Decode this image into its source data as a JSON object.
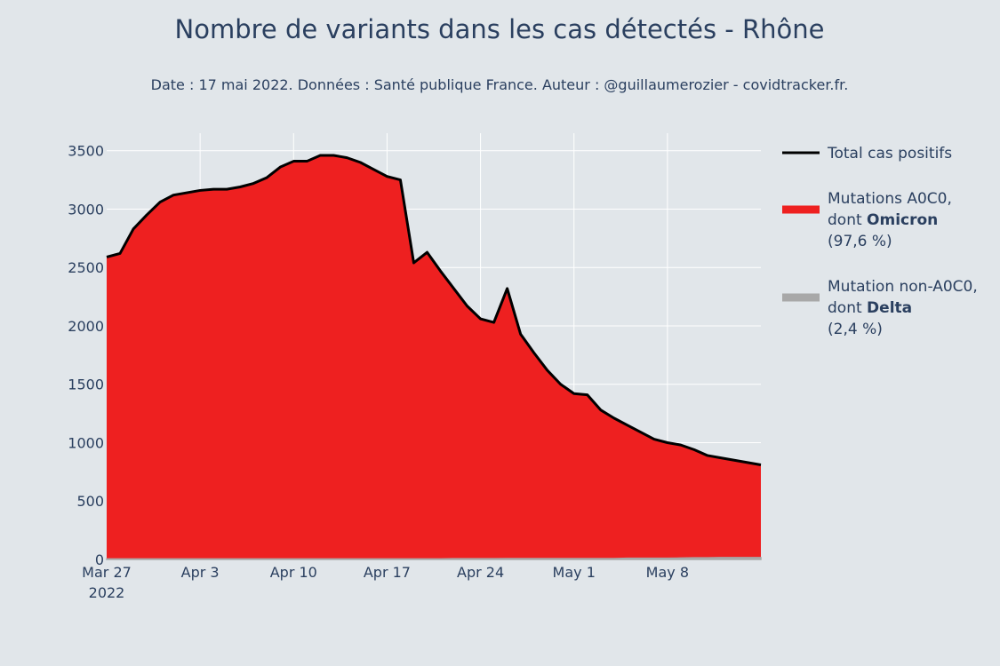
{
  "chart_data": {
    "type": "area",
    "title": "Nombre de variants dans les cas détectés - Rhône",
    "subtitle": "Date : 17 mai 2022. Données : Santé publique France. Auteur : @guillaumerozier - covidtracker.fr.",
    "xlabel": "",
    "ylabel": "",
    "ylim": [
      0,
      3650
    ],
    "y_ticks": [
      0,
      500,
      1000,
      1500,
      2000,
      2500,
      3000,
      3500
    ],
    "x_ticks": [
      {
        "day": 0,
        "label": "Mar 27",
        "sub": "2022"
      },
      {
        "day": 7,
        "label": "Apr 3",
        "sub": ""
      },
      {
        "day": 14,
        "label": "Apr 10",
        "sub": ""
      },
      {
        "day": 21,
        "label": "Apr 17",
        "sub": ""
      },
      {
        "day": 28,
        "label": "Apr 24",
        "sub": ""
      },
      {
        "day": 35,
        "label": "May 1",
        "sub": ""
      },
      {
        "day": 42,
        "label": "May 8",
        "sub": ""
      }
    ],
    "x_range_days": [
      0,
      49
    ],
    "grid": true,
    "legend_position": "right",
    "series": [
      {
        "name": "Total cas positifs",
        "color": "#000000",
        "style": "line",
        "values": [
          2590,
          2620,
          2830,
          2950,
          3060,
          3120,
          3140,
          3160,
          3170,
          3170,
          3190,
          3220,
          3270,
          3360,
          3410,
          3410,
          3460,
          3460,
          3440,
          3400,
          3340,
          3280,
          3250,
          2540,
          2630,
          2470,
          2320,
          2170,
          2060,
          2030,
          2320,
          1930,
          1770,
          1620,
          1500,
          1420,
          1410,
          1280,
          1210,
          1150,
          1090,
          1030,
          1000,
          980,
          940,
          890,
          870,
          850,
          830,
          810
        ]
      },
      {
        "name": "Mutations A0C0, dont Omicron (97,6 %)",
        "color": "#ee2020",
        "style": "area",
        "values": [
          2585,
          2615,
          2825,
          2945,
          3055,
          3115,
          3135,
          3155,
          3165,
          3165,
          3185,
          3215,
          3265,
          3355,
          3405,
          3405,
          3455,
          3455,
          3435,
          3395,
          3335,
          3275,
          3245,
          2535,
          2625,
          2465,
          2313,
          2163,
          2053,
          2023,
          2312,
          1922,
          1762,
          1612,
          1492,
          1412,
          1402,
          1272,
          1202,
          1140,
          1080,
          1020,
          990,
          968,
          926,
          876,
          854,
          834,
          814,
          794
        ]
      },
      {
        "name": "Mutation non-A0C0, dont Delta (2,4 %)",
        "color": "#a8a8a8",
        "style": "area",
        "values": [
          5,
          5,
          5,
          5,
          5,
          5,
          5,
          5,
          5,
          5,
          5,
          5,
          5,
          5,
          5,
          5,
          5,
          5,
          5,
          5,
          5,
          5,
          5,
          5,
          5,
          5,
          7,
          7,
          7,
          7,
          8,
          8,
          8,
          8,
          8,
          8,
          8,
          8,
          8,
          10,
          10,
          10,
          10,
          12,
          14,
          14,
          16,
          16,
          16,
          16
        ]
      }
    ]
  },
  "legend": [
    {
      "lines": [
        {
          "text": "Total cas positifs",
          "bold": ""
        }
      ],
      "color": "#000000"
    },
    {
      "lines": [
        {
          "text": "Mutations A0C0,",
          "bold": ""
        },
        {
          "text": "dont ",
          "bold": "Omicron"
        },
        {
          "text": " (97,6 %)",
          "bold": ""
        }
      ],
      "color": "#ee2020"
    },
    {
      "lines": [
        {
          "text": "Mutation non-A0C0,",
          "bold": ""
        },
        {
          "text": "dont ",
          "bold": "Delta"
        },
        {
          "text": " (2,4 %)",
          "bold": ""
        }
      ],
      "color": "#a8a8a8"
    }
  ]
}
